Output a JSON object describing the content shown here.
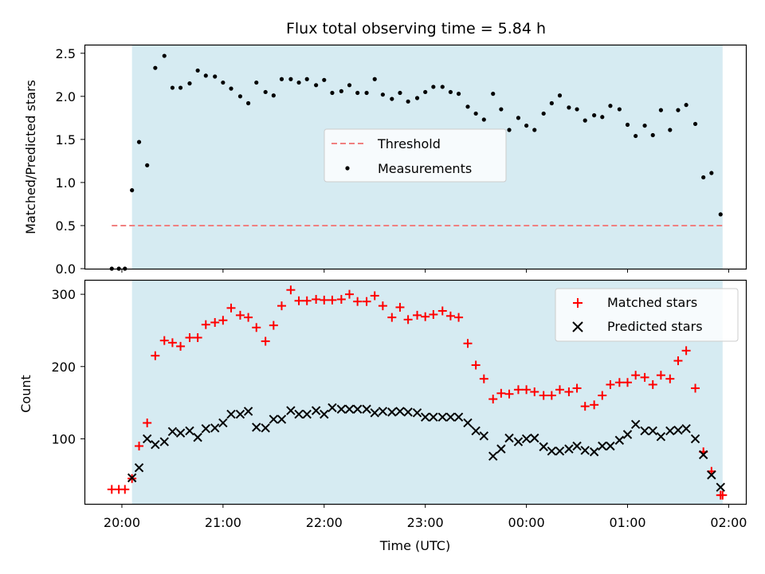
{
  "figure": {
    "title": "Flux total observing time = 5.84 h",
    "xlabel": "Time (UTC)",
    "x_tick_labels": [
      "20:00",
      "21:00",
      "22:00",
      "23:00",
      "00:00",
      "01:00",
      "02:00"
    ]
  },
  "top": {
    "ylabel": "Matched/Predicted stars",
    "y_tick_labels": [
      "0.0",
      "0.5",
      "1.0",
      "1.5",
      "2.0",
      "2.5"
    ],
    "legend": {
      "threshold_label": "Threshold",
      "measurements_label": "Measurements"
    }
  },
  "bottom": {
    "ylabel": "Count",
    "y_tick_labels": [
      "100",
      "200",
      "300"
    ],
    "legend": {
      "matched_label": "Matched stars",
      "predicted_label": "Predicted stars"
    }
  },
  "colors": {
    "shade": "#add8e6",
    "threshold": "#f08080",
    "matched": "#ff0000",
    "predicted": "#000000",
    "measurements": "#000000"
  },
  "chart_data": [
    {
      "type": "scatter",
      "xlabel": "Time (UTC)",
      "ylabel": "Matched/Predicted stars",
      "x_unit": "hours since 20:00 UTC",
      "x_ticks": [
        0,
        1,
        2,
        3,
        4,
        5,
        6
      ],
      "ylim": [
        0,
        2.6
      ],
      "xlim": [
        -0.37,
        6.17
      ],
      "observing_window": [
        0.1,
        5.94
      ],
      "threshold": {
        "name": "Threshold",
        "y": 0.5,
        "x_range": [
          -0.1,
          5.94
        ],
        "style": "dashed"
      },
      "series": [
        {
          "name": "Measurements",
          "x": [
            -0.1,
            -0.03,
            0.03,
            0.1,
            0.17,
            0.25,
            0.33,
            0.42,
            0.5,
            0.58,
            0.67,
            0.75,
            0.83,
            0.92,
            1.0,
            1.08,
            1.17,
            1.25,
            1.33,
            1.42,
            1.5,
            1.58,
            1.67,
            1.75,
            1.83,
            1.92,
            2.0,
            2.08,
            2.17,
            2.25,
            2.33,
            2.42,
            2.5,
            2.58,
            2.67,
            2.75,
            2.83,
            2.92,
            3.0,
            3.08,
            3.17,
            3.25,
            3.33,
            3.42,
            3.5,
            3.58,
            3.67,
            3.75,
            3.83,
            3.92,
            4.0,
            4.08,
            4.17,
            4.25,
            4.33,
            4.42,
            4.5,
            4.58,
            4.67,
            4.75,
            4.83,
            4.92,
            5.0,
            5.08,
            5.17,
            5.25,
            5.33,
            5.42,
            5.5,
            5.58,
            5.67,
            5.75,
            5.83,
            5.92
          ],
          "y": [
            0,
            0,
            0,
            0.91,
            1.47,
            1.2,
            2.33,
            2.47,
            2.1,
            2.1,
            2.15,
            2.3,
            2.24,
            2.23,
            2.16,
            2.09,
            2.0,
            1.92,
            2.16,
            2.05,
            2.01,
            2.2,
            2.2,
            2.16,
            2.2,
            2.13,
            2.19,
            2.04,
            2.06,
            2.13,
            2.04,
            2.04,
            2.2,
            2.02,
            1.97,
            2.04,
            1.94,
            1.98,
            2.05,
            2.11,
            2.11,
            2.05,
            2.03,
            1.88,
            1.8,
            1.73,
            2.03,
            1.85,
            1.61,
            1.75,
            1.66,
            1.61,
            1.8,
            1.92,
            2.01,
            1.87,
            1.85,
            1.72,
            1.78,
            1.76,
            1.89,
            1.85,
            1.67,
            1.54,
            1.66,
            1.55,
            1.84,
            1.61,
            1.84,
            1.9,
            1.68,
            1.06,
            1.11,
            0.63
          ]
        }
      ]
    },
    {
      "type": "scatter",
      "xlabel": "Time (UTC)",
      "ylabel": "Count",
      "x_unit": "hours since 20:00 UTC",
      "x_ticks": [
        0,
        1,
        2,
        3,
        4,
        5,
        6
      ],
      "ylim": [
        10,
        320
      ],
      "xlim": [
        -0.37,
        6.17
      ],
      "observing_window": [
        0.1,
        5.94
      ],
      "series": [
        {
          "name": "Matched stars",
          "marker": "plus",
          "x": [
            -0.1,
            -0.03,
            0.03,
            0.1,
            0.17,
            0.25,
            0.33,
            0.42,
            0.5,
            0.58,
            0.67,
            0.75,
            0.83,
            0.92,
            1.0,
            1.08,
            1.17,
            1.25,
            1.33,
            1.42,
            1.5,
            1.58,
            1.67,
            1.75,
            1.83,
            1.92,
            2.0,
            2.08,
            2.17,
            2.25,
            2.33,
            2.42,
            2.5,
            2.58,
            2.67,
            2.75,
            2.83,
            2.92,
            3.0,
            3.08,
            3.17,
            3.25,
            3.33,
            3.42,
            3.5,
            3.58,
            3.67,
            3.75,
            3.83,
            3.92,
            4.0,
            4.08,
            4.17,
            4.25,
            4.33,
            4.42,
            4.5,
            4.58,
            4.67,
            4.75,
            4.83,
            4.92,
            5.0,
            5.08,
            5.17,
            5.25,
            5.33,
            5.42,
            5.5,
            5.58,
            5.67,
            5.75,
            5.83,
            5.92,
            5.94
          ],
          "y": [
            30,
            30,
            30,
            45,
            90,
            122,
            215,
            236,
            233,
            228,
            240,
            240,
            258,
            261,
            264,
            281,
            271,
            268,
            254,
            235,
            257,
            284,
            306,
            291,
            291,
            293,
            292,
            292,
            293,
            300,
            290,
            290,
            298,
            284,
            268,
            282,
            265,
            271,
            269,
            272,
            277,
            270,
            268,
            232,
            202,
            183,
            155,
            163,
            162,
            168,
            168,
            165,
            160,
            160,
            168,
            165,
            170,
            145,
            147,
            160,
            175,
            178,
            178,
            188,
            185,
            175,
            188,
            183,
            208,
            222,
            170,
            82,
            55,
            22,
            22
          ]
        },
        {
          "name": "Predicted stars",
          "marker": "x",
          "x": [
            0.1,
            0.17,
            0.25,
            0.33,
            0.42,
            0.5,
            0.58,
            0.67,
            0.75,
            0.83,
            0.92,
            1.0,
            1.08,
            1.17,
            1.25,
            1.33,
            1.42,
            1.5,
            1.58,
            1.67,
            1.75,
            1.83,
            1.92,
            2.0,
            2.08,
            2.17,
            2.25,
            2.33,
            2.42,
            2.5,
            2.58,
            2.67,
            2.75,
            2.83,
            2.92,
            3.0,
            3.08,
            3.17,
            3.25,
            3.33,
            3.42,
            3.5,
            3.58,
            3.67,
            3.75,
            3.83,
            3.92,
            4.0,
            4.08,
            4.17,
            4.25,
            4.33,
            4.42,
            4.5,
            4.58,
            4.67,
            4.75,
            4.83,
            4.92,
            5.0,
            5.08,
            5.17,
            5.25,
            5.33,
            5.42,
            5.5,
            5.58,
            5.67,
            5.75,
            5.83,
            5.92
          ],
          "y": [
            46,
            60,
            100,
            92,
            96,
            110,
            108,
            111,
            102,
            114,
            115,
            122,
            134,
            134,
            138,
            116,
            115,
            127,
            127,
            139,
            134,
            134,
            139,
            134,
            143,
            141,
            141,
            141,
            141,
            136,
            138,
            137,
            138,
            137,
            136,
            130,
            130,
            130,
            130,
            130,
            122,
            111,
            104,
            76,
            86,
            101,
            96,
            100,
            101,
            89,
            83,
            83,
            86,
            90,
            84,
            82,
            90,
            90,
            98,
            106,
            120,
            111,
            111,
            103,
            111,
            112,
            114,
            100,
            78,
            50,
            33
          ]
        }
      ]
    }
  ]
}
